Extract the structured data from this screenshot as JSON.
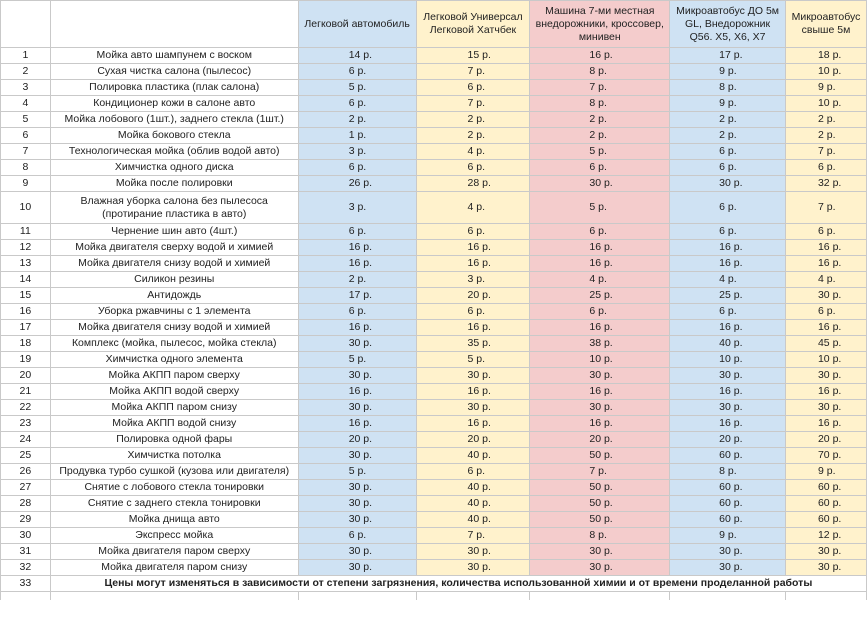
{
  "headers": [
    "",
    "",
    "Легковой автомобиль",
    "Легковой Универсал Легковой Хатчбек",
    "Машина 7-ми местная внедорожники, кроссовер, минивен",
    "Микроавтобус ДО 5м GL, Внедорожник Q56. X5, X6, X7",
    "Микроавтобус свыше 5м"
  ],
  "rows": [
    {
      "n": "1",
      "name": "Мойка авто шампунем с воском",
      "v": [
        "14 р.",
        "15 р.",
        "16 р.",
        "17 р.",
        "18 р."
      ]
    },
    {
      "n": "2",
      "name": "Сухая чистка салона (пылесос)",
      "v": [
        "6 р.",
        "7 р.",
        "8 р.",
        "9 р.",
        "10 р."
      ]
    },
    {
      "n": "3",
      "name": "Полировка пластика (плак салона)",
      "v": [
        "5 р.",
        "6 р.",
        "7 р.",
        "8 р.",
        "9 р."
      ]
    },
    {
      "n": "4",
      "name": "Кондиционер кожи в салоне авто",
      "v": [
        "6 р.",
        "7 р.",
        "8 р.",
        "9 р.",
        "10 р."
      ]
    },
    {
      "n": "5",
      "name": "Мойка лобового (1шт.), заднего стекла (1шт.)",
      "v": [
        "2 р.",
        "2 р.",
        "2 р.",
        "2 р.",
        "2 р."
      ]
    },
    {
      "n": "6",
      "name": "Мойка бокового стекла",
      "v": [
        "1 р.",
        "2 р.",
        "2 р.",
        "2 р.",
        "2 р."
      ]
    },
    {
      "n": "7",
      "name": "Технологическая мойка (облив водой авто)",
      "v": [
        "3 р.",
        "4 р.",
        "5 р.",
        "6 р.",
        "7 р."
      ]
    },
    {
      "n": "8",
      "name": "Химчистка одного диска",
      "v": [
        "6 р.",
        "6 р.",
        "6 р.",
        "6 р.",
        "6 р."
      ]
    },
    {
      "n": "9",
      "name": "Мойка после полировки",
      "v": [
        "26 р.",
        "28 р.",
        "30 р.",
        "30 р.",
        "32 р."
      ]
    },
    {
      "n": "10",
      "name": "Влажная уборка салона без пылесоса (протирание пластика в авто)",
      "v": [
        "3 р.",
        "4 р.",
        "5 р.",
        "6 р.",
        "7 р."
      ],
      "tall": true
    },
    {
      "n": "11",
      "name": "Чернение шин авто (4шт.)",
      "v": [
        "6 р.",
        "6 р.",
        "6 р.",
        "6 р.",
        "6 р."
      ]
    },
    {
      "n": "12",
      "name": "Мойка двигателя сверху водой и химией",
      "v": [
        "16 р.",
        "16 р.",
        "16 р.",
        "16 р.",
        "16 р."
      ]
    },
    {
      "n": "13",
      "name": "Мойка двигателя снизу водой и химией",
      "v": [
        "16 р.",
        "16 р.",
        "16 р.",
        "16 р.",
        "16 р."
      ]
    },
    {
      "n": "14",
      "name": "Силикон резины",
      "v": [
        "2 р.",
        "3 р.",
        "4 р.",
        "4 р.",
        "4 р."
      ]
    },
    {
      "n": "15",
      "name": "Антидождь",
      "v": [
        "17 р.",
        "20 р.",
        "25 р.",
        "25 р.",
        "30 р."
      ]
    },
    {
      "n": "16",
      "name": "Уборка ржавчины с 1 элемента",
      "v": [
        "6 р.",
        "6 р.",
        "6 р.",
        "6 р.",
        "6 р."
      ]
    },
    {
      "n": "17",
      "name": "Мойка двигателя снизу водой и химией",
      "v": [
        "16 р.",
        "16 р.",
        "16 р.",
        "16 р.",
        "16 р."
      ]
    },
    {
      "n": "18",
      "name": "Комплекс (мойка, пылесос, мойка стекла)",
      "v": [
        "30 р.",
        "35 р.",
        "38 р.",
        "40 р.",
        "45 р."
      ]
    },
    {
      "n": "19",
      "name": "Химчистка одного элемента",
      "v": [
        "5 р.",
        "5 р.",
        "10 р.",
        "10 р.",
        "10 р."
      ]
    },
    {
      "n": "20",
      "name": "Мойка АКПП паром сверху",
      "v": [
        "30 р.",
        "30 р.",
        "30 р.",
        "30 р.",
        "30 р."
      ]
    },
    {
      "n": "21",
      "name": "Мойка АКПП водой сверху",
      "v": [
        "16 р.",
        "16 р.",
        "16 р.",
        "16 р.",
        "16 р."
      ]
    },
    {
      "n": "22",
      "name": "Мойка АКПП паром снизу",
      "v": [
        "30 р.",
        "30 р.",
        "30 р.",
        "30 р.",
        "30 р."
      ]
    },
    {
      "n": "23",
      "name": "Мойка АКПП водой снизу",
      "v": [
        "16 р.",
        "16 р.",
        "16 р.",
        "16 р.",
        "16 р."
      ]
    },
    {
      "n": "24",
      "name": "Полировка одной фары",
      "v": [
        "20 р.",
        "20 р.",
        "20 р.",
        "20 р.",
        "20 р."
      ]
    },
    {
      "n": "25",
      "name": "Химчистка потолка",
      "v": [
        "30 р.",
        "40 р.",
        "50 р.",
        "60 р.",
        "70 р."
      ]
    },
    {
      "n": "26",
      "name": "Продувка турбо сушкой (кузова или двигателя)",
      "v": [
        "5 р.",
        "6 р.",
        "7 р.",
        "8 р.",
        "9 р."
      ]
    },
    {
      "n": "27",
      "name": "Снятие с лобового стекла тонировки",
      "v": [
        "30 р.",
        "40 р.",
        "50 р.",
        "60 р.",
        "60 р."
      ]
    },
    {
      "n": "28",
      "name": "Снятие с заднего стекла тонировки",
      "v": [
        "30 р.",
        "40 р.",
        "50 р.",
        "60 р.",
        "60 р."
      ]
    },
    {
      "n": "29",
      "name": "Мойка днища авто",
      "v": [
        "30 р.",
        "40 р.",
        "50 р.",
        "60 р.",
        "60 р."
      ]
    },
    {
      "n": "30",
      "name": "Экспресс мойка",
      "v": [
        "6 р.",
        "7 р.",
        "8 р.",
        "9 р.",
        "12 р."
      ]
    },
    {
      "n": "31",
      "name": "Мойка двигателя паром сверху",
      "v": [
        "30 р.",
        "30 р.",
        "30 р.",
        "30 р.",
        "30 р."
      ]
    },
    {
      "n": "32",
      "name": "Мойка двигателя паром снизу",
      "v": [
        "30 р.",
        "30 р.",
        "30 р.",
        "30 р.",
        "30 р."
      ]
    }
  ],
  "footer": {
    "n": "33",
    "note": "Цены могут изменяться в зависимости от степени загрязнения, количества использованной химии и от времени проделанной работы"
  },
  "colors": {
    "blue": "#cfe2f3",
    "yellow": "#fff2cc",
    "pink": "#f4cccc"
  }
}
